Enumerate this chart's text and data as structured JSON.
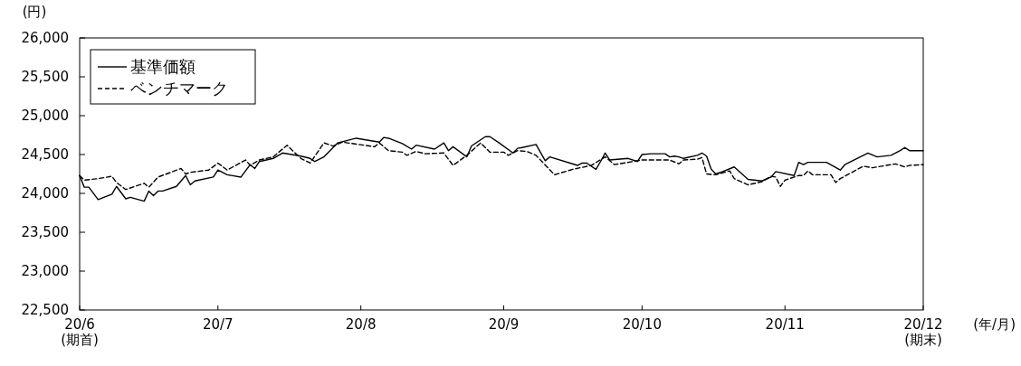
{
  "chart_data": {
    "type": "line",
    "ylabel": "(円)",
    "xlabel": "(年/月)",
    "xlim": [
      "--06-01",
      "--12-01"
    ],
    "xticks": [
      {
        "value": "--06-01",
        "label": "20/6\n(期首)"
      },
      {
        "value": "--07-01",
        "label": "20/7"
      },
      {
        "value": "--08-01",
        "label": "20/8"
      },
      {
        "value": "--09-01",
        "label": "20/9"
      },
      {
        "value": "--10-01",
        "label": "20/10"
      },
      {
        "value": "--11-01",
        "label": "20/11"
      },
      {
        "value": "--12-01",
        "label": "20/12\n(期末)"
      }
    ],
    "ylim": [
      22500,
      26000
    ],
    "yticks": [
      {
        "value": 22500,
        "label": "22,500"
      },
      {
        "value": 23000,
        "label": "23,000"
      },
      {
        "value": 23500,
        "label": "23,500"
      },
      {
        "value": 24000,
        "label": "24,000"
      },
      {
        "value": 24500,
        "label": "24,500"
      },
      {
        "value": 25000,
        "label": "25,000"
      },
      {
        "value": 25500,
        "label": "25,500"
      },
      {
        "value": 26000,
        "label": "26,000"
      }
    ],
    "grid": false,
    "legend": "top left",
    "series": [
      {
        "name": "基準価額",
        "color": "#000000",
        "line_style": "solid",
        "x": [
          "--06-01",
          "--06-02",
          "--06-03",
          "--06-05",
          "--06-08",
          "--06-09",
          "--06-11",
          "--06-12",
          "--06-15",
          "--06-16",
          "--06-17",
          "--06-18",
          "--06-19",
          "--06-22",
          "--06-24",
          "--06-25",
          "--06-26",
          "--06-30",
          "--07-01",
          "--07-03",
          "--07-06",
          "--07-08",
          "--07-09",
          "--07-10",
          "--07-13",
          "--07-15",
          "--07-19",
          "--07-21",
          "--07-22",
          "--07-24",
          "--07-27",
          "--07-31",
          "--08-05",
          "--08-06",
          "--08-07",
          "--08-10",
          "--08-12",
          "--08-13",
          "--08-17",
          "--08-19",
          "--08-20",
          "--08-21",
          "--08-24",
          "--08-25",
          "--08-28",
          "--08-29",
          "--08-31",
          "--09-03",
          "--09-04",
          "--09-05",
          "--09-08",
          "--09-10",
          "--09-11",
          "--09-17",
          "--09-18",
          "--09-19",
          "--09-21",
          "--09-22",
          "--09-23",
          "--09-24",
          "--09-28",
          "--09-30",
          "--10-01",
          "--10-03",
          "--10-06",
          "--10-07",
          "--10-08",
          "--10-09",
          "--10-10",
          "--10-13",
          "--10-14",
          "--10-15",
          "--10-16",
          "--10-17",
          "--10-18",
          "--10-21",
          "--10-24",
          "--10-27",
          "--10-29",
          "--10-30",
          "--11-03",
          "--11-04",
          "--11-05",
          "--11-06",
          "--11-10",
          "--11-13",
          "--11-14",
          "--11-19",
          "--11-21",
          "--11-24",
          "--11-26",
          "--11-27",
          "--11-28",
          "--12-01"
        ],
        "values": [
          24230,
          24080,
          24080,
          23920,
          23990,
          24090,
          23930,
          23950,
          23900,
          24030,
          23970,
          24030,
          24030,
          24090,
          24230,
          24110,
          24160,
          24210,
          24300,
          24240,
          24210,
          24370,
          24320,
          24410,
          24450,
          24520,
          24480,
          24450,
          24410,
          24470,
          24650,
          24710,
          24660,
          24720,
          24710,
          24640,
          24570,
          24620,
          24570,
          24650,
          24550,
          24600,
          24470,
          24610,
          24730,
          24730,
          24650,
          24520,
          24580,
          24590,
          24630,
          24420,
          24470,
          24360,
          24390,
          24390,
          24310,
          24410,
          24520,
          24430,
          24450,
          24410,
          24500,
          24510,
          24510,
          24470,
          24480,
          24470,
          24450,
          24490,
          24520,
          24480,
          24310,
          24250,
          24270,
          24340,
          24180,
          24160,
          24210,
          24280,
          24230,
          24400,
          24370,
          24400,
          24400,
          24300,
          24370,
          24520,
          24470,
          24490,
          24550,
          24590,
          24550,
          24550
        ]
      },
      {
        "name": "ベンチマーク",
        "color": "#000000",
        "line_style": "dashed",
        "x": [
          "--06-01",
          "--06-02",
          "--06-05",
          "--06-08",
          "--06-09",
          "--06-11",
          "--06-15",
          "--06-16",
          "--06-18",
          "--06-23",
          "--06-24",
          "--06-25",
          "--06-29",
          "--07-01",
          "--07-03",
          "--07-07",
          "--07-08",
          "--07-10",
          "--07-13",
          "--07-16",
          "--07-17",
          "--07-19",
          "--07-21",
          "--07-24",
          "--07-26",
          "--07-28",
          "--08-04",
          "--08-05",
          "--08-07",
          "--08-10",
          "--08-11",
          "--08-13",
          "--08-15",
          "--08-19",
          "--08-21",
          "--08-24",
          "--08-27",
          "--08-29",
          "--09-01",
          "--09-02",
          "--09-04",
          "--09-06",
          "--09-08",
          "--09-12",
          "--09-16",
          "--09-20",
          "--09-23",
          "--09-25",
          "--09-29",
          "--10-01",
          "--10-07",
          "--10-09",
          "--10-10",
          "--10-13",
          "--10-14",
          "--10-15",
          "--10-17",
          "--10-20",
          "--10-21",
          "--10-24",
          "--10-27",
          "--10-29",
          "--10-30",
          "--10-31",
          "--11-01",
          "--11-04",
          "--11-05",
          "--11-06",
          "--11-07",
          "--11-11",
          "--11-12",
          "--11-13",
          "--11-18",
          "--11-20",
          "--11-23",
          "--11-25",
          "--11-27",
          "--11-28",
          "--12-01"
        ],
        "values": [
          24230,
          24170,
          24190,
          24220,
          24140,
          24050,
          24130,
          24080,
          24210,
          24320,
          24250,
          24270,
          24300,
          24390,
          24300,
          24430,
          24360,
          24430,
          24470,
          24620,
          24560,
          24450,
          24390,
          24650,
          24610,
          24660,
          24600,
          24650,
          24550,
          24530,
          24490,
          24540,
          24510,
          24520,
          24360,
          24490,
          24650,
          24530,
          24530,
          24490,
          24550,
          24540,
          24490,
          24240,
          24310,
          24360,
          24470,
          24370,
          24410,
          24430,
          24430,
          24380,
          24430,
          24440,
          24460,
          24250,
          24240,
          24290,
          24190,
          24110,
          24150,
          24220,
          24210,
          24090,
          24170,
          24230,
          24230,
          24290,
          24240,
          24240,
          24140,
          24190,
          24350,
          24330,
          24360,
          24380,
          24340,
          24360,
          24370
        ]
      }
    ]
  }
}
